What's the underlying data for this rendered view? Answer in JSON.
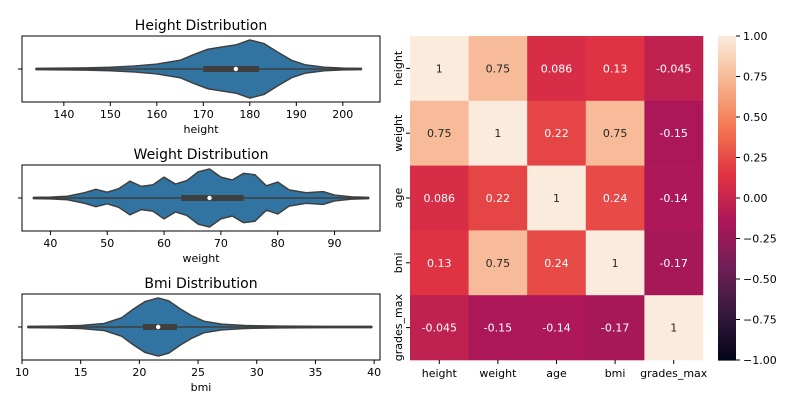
{
  "chart_data": [
    {
      "type": "violin",
      "title": "Height Distribution",
      "xlabel": "height",
      "xlim": [
        131,
        208
      ],
      "xticks": [
        140,
        150,
        160,
        170,
        180,
        190,
        200
      ],
      "color": "#3274a1",
      "summary": {
        "min": 134,
        "q1": 170,
        "median": 177,
        "q3": 182,
        "max": 204
      },
      "density": [
        [
          134,
          0.02
        ],
        [
          140,
          0.03
        ],
        [
          145,
          0.04
        ],
        [
          150,
          0.06
        ],
        [
          155,
          0.1
        ],
        [
          160,
          0.17
        ],
        [
          165,
          0.3
        ],
        [
          168,
          0.5
        ],
        [
          171,
          0.68
        ],
        [
          174,
          0.76
        ],
        [
          177,
          0.83
        ],
        [
          180,
          1.0
        ],
        [
          183,
          0.88
        ],
        [
          186,
          0.58
        ],
        [
          189,
          0.3
        ],
        [
          192,
          0.14
        ],
        [
          196,
          0.06
        ],
        [
          200,
          0.03
        ],
        [
          204,
          0.02
        ]
      ]
    },
    {
      "type": "violin",
      "title": "Weight Distribution",
      "xlabel": "weight",
      "xlim": [
        35,
        98
      ],
      "xticks": [
        40,
        50,
        60,
        70,
        80,
        90
      ],
      "color": "#3274a1",
      "summary": {
        "min": 37,
        "q1": 63,
        "median": 68,
        "q3": 74,
        "max": 96
      },
      "density": [
        [
          37,
          0.02
        ],
        [
          40,
          0.03
        ],
        [
          43,
          0.06
        ],
        [
          46,
          0.18
        ],
        [
          48,
          0.3
        ],
        [
          50,
          0.2
        ],
        [
          52,
          0.32
        ],
        [
          54,
          0.58
        ],
        [
          56,
          0.4
        ],
        [
          58,
          0.45
        ],
        [
          60,
          0.72
        ],
        [
          62,
          0.48
        ],
        [
          64,
          0.6
        ],
        [
          66,
          0.9
        ],
        [
          68,
          1.0
        ],
        [
          70,
          0.72
        ],
        [
          72,
          0.62
        ],
        [
          74,
          0.85
        ],
        [
          76,
          0.8
        ],
        [
          78,
          0.42
        ],
        [
          80,
          0.55
        ],
        [
          82,
          0.28
        ],
        [
          85,
          0.18
        ],
        [
          88,
          0.22
        ],
        [
          90,
          0.1
        ],
        [
          93,
          0.04
        ],
        [
          96,
          0.02
        ]
      ]
    },
    {
      "type": "violin",
      "title": "Bmi Distribution",
      "xlabel": "bmi",
      "xlim": [
        10,
        40.5
      ],
      "xticks": [
        10,
        15,
        20,
        25,
        30,
        35,
        40
      ],
      "color": "#3274a1",
      "summary": {
        "min": 10.5,
        "q1": 20.3,
        "median": 21.6,
        "q3": 23.2,
        "max": 39.8
      },
      "density": [
        [
          10.5,
          0.02
        ],
        [
          13,
          0.03
        ],
        [
          15,
          0.05
        ],
        [
          17,
          0.12
        ],
        [
          18.5,
          0.32
        ],
        [
          19.5,
          0.62
        ],
        [
          20.5,
          0.88
        ],
        [
          21.6,
          1.0
        ],
        [
          22.5,
          0.9
        ],
        [
          23.5,
          0.62
        ],
        [
          24.5,
          0.38
        ],
        [
          25.5,
          0.2
        ],
        [
          27,
          0.1
        ],
        [
          29,
          0.05
        ],
        [
          32,
          0.03
        ],
        [
          36,
          0.02
        ],
        [
          39.8,
          0.02
        ]
      ]
    },
    {
      "type": "heatmap",
      "labels": [
        "height",
        "weight",
        "age",
        "bmi",
        "grades_max"
      ],
      "values": [
        [
          1,
          0.75,
          0.086,
          0.13,
          -0.045
        ],
        [
          0.75,
          1,
          0.22,
          0.75,
          -0.15
        ],
        [
          0.086,
          0.22,
          1,
          0.24,
          -0.14
        ],
        [
          0.13,
          0.75,
          0.24,
          1,
          -0.17
        ],
        [
          -0.045,
          -0.15,
          -0.14,
          -0.17,
          1
        ]
      ],
      "cell_labels": [
        [
          "1",
          "0.75",
          "0.086",
          "0.13",
          "-0.045"
        ],
        [
          "0.75",
          "1",
          "0.22",
          "0.75",
          "-0.15"
        ],
        [
          "0.086",
          "0.22",
          "1",
          "0.24",
          "-0.14"
        ],
        [
          "0.13",
          "0.75",
          "0.24",
          "1",
          "-0.17"
        ],
        [
          "-0.045",
          "-0.15",
          "-0.14",
          "-0.17",
          "1"
        ]
      ],
      "vmin": -1,
      "vmax": 1,
      "colorbar_ticks": [
        "1.00",
        "0.75",
        "0.50",
        "0.25",
        "0.00",
        "−0.25",
        "−0.50",
        "−0.75",
        "−1.00"
      ],
      "colormap": [
        "#03051a",
        "#36193e",
        "#701f57",
        "#ad1759",
        "#e13342",
        "#f37651",
        "#f6b48f",
        "#faebdd"
      ]
    }
  ]
}
